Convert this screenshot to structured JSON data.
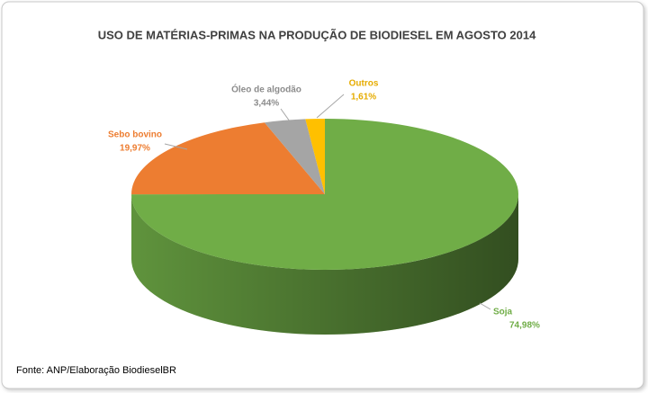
{
  "chart_data": {
    "type": "pie",
    "title": "USO DE MATÉRIAS-PRIMAS NA PRODUÇÃO DE BIODIESEL EM AGOSTO 2014",
    "categories": [
      "Soja",
      "Sebo bovino",
      "Óleo de algodão",
      "Outros"
    ],
    "values": [
      74.98,
      19.97,
      3.44,
      1.61
    ],
    "value_labels": [
      "74,98%",
      "19,97%",
      "3,44%",
      "1,61%"
    ],
    "colors": [
      "#70ad47",
      "#ed7d31",
      "#a5a5a5",
      "#ffc000"
    ],
    "source": "Fonte: ANP/Elaboração BiodieselBR"
  }
}
